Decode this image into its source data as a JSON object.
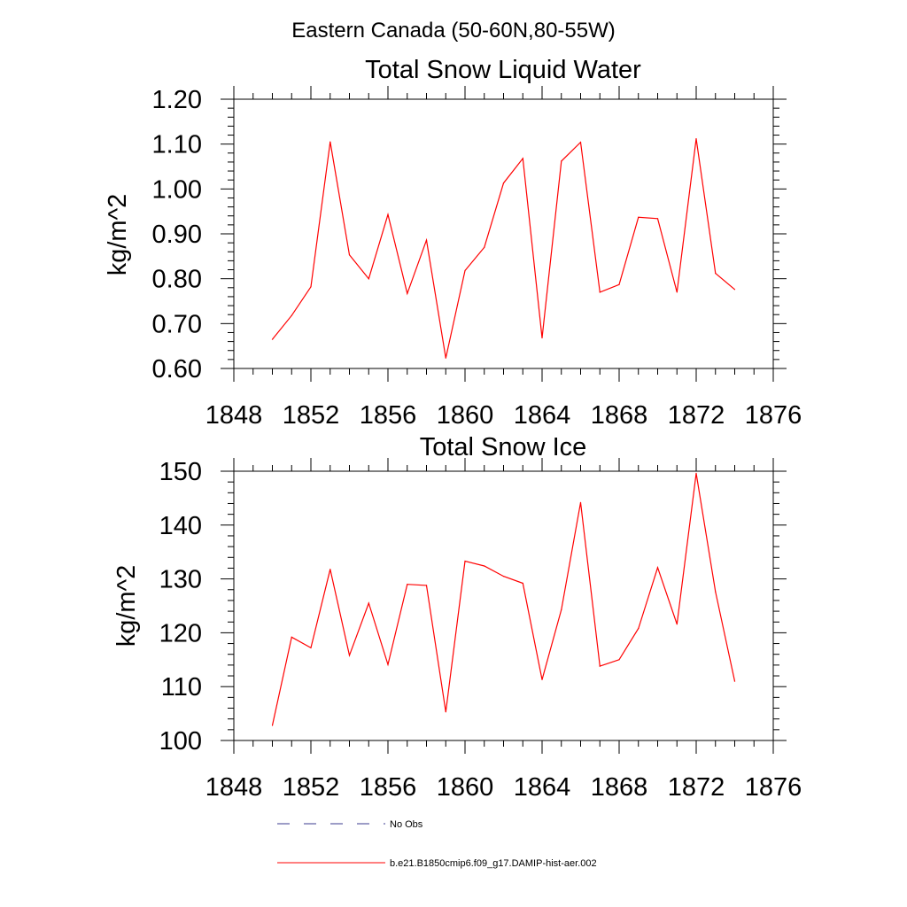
{
  "figure": {
    "suptitle": "Eastern Canada (50-60N,80-55W)"
  },
  "legend": {
    "entries": [
      {
        "label": "No Obs",
        "style": "dashed",
        "color": "#3b3b8f"
      },
      {
        "label": "b.e21.B1850cmip6.f09_g17.DAMIP-hist-aer.002",
        "style": "solid",
        "color": "#ff0000"
      }
    ]
  },
  "chart_data": [
    {
      "type": "line",
      "title": "Total Snow Liquid Water",
      "xlabel": "",
      "ylabel": "kg/m^2",
      "xlim": [
        1848,
        1876
      ],
      "ylim": [
        0.6,
        1.2
      ],
      "xticks": [
        "1848",
        "1852",
        "1856",
        "1860",
        "1864",
        "1868",
        "1872",
        "1876"
      ],
      "yticks": [
        "0.60",
        "0.70",
        "0.80",
        "0.90",
        "1.00",
        "1.10",
        "1.20"
      ],
      "x": [
        1850,
        1851,
        1852,
        1853,
        1854,
        1855,
        1856,
        1857,
        1858,
        1859,
        1860,
        1861,
        1862,
        1863,
        1864,
        1865,
        1866,
        1867,
        1868,
        1869,
        1870,
        1871,
        1872,
        1873,
        1874
      ],
      "series": [
        {
          "values": [
            0.665,
            0.718,
            0.782,
            1.105,
            0.853,
            0.8,
            0.943,
            0.767,
            0.886,
            0.623,
            0.818,
            0.87,
            1.013,
            1.068,
            0.668,
            1.062,
            1.104,
            0.77,
            0.787,
            0.937,
            0.934,
            0.77,
            1.112,
            0.812,
            0.776
          ],
          "color": "#ff0000"
        }
      ],
      "grid": false
    },
    {
      "type": "line",
      "title": "Total Snow Ice",
      "xlabel": "",
      "ylabel": "kg/m^2",
      "xlim": [
        1848,
        1876
      ],
      "ylim": [
        100,
        150
      ],
      "xticks": [
        "1848",
        "1852",
        "1856",
        "1860",
        "1864",
        "1868",
        "1872",
        "1876"
      ],
      "yticks": [
        "100",
        "110",
        "120",
        "130",
        "140",
        "150"
      ],
      "x": [
        1850,
        1851,
        1852,
        1853,
        1854,
        1855,
        1856,
        1857,
        1858,
        1859,
        1860,
        1861,
        1862,
        1863,
        1864,
        1865,
        1866,
        1867,
        1868,
        1869,
        1870,
        1871,
        1872,
        1873,
        1874
      ],
      "series": [
        {
          "values": [
            102.8,
            119.2,
            117.2,
            131.8,
            115.8,
            125.5,
            114.1,
            129.0,
            128.8,
            105.3,
            133.3,
            132.4,
            130.5,
            129.2,
            111.3,
            124.3,
            144.2,
            113.8,
            115.0,
            120.8,
            132.1,
            121.6,
            149.6,
            127.6,
            111.0
          ],
          "color": "#ff0000"
        }
      ],
      "grid": false
    }
  ]
}
